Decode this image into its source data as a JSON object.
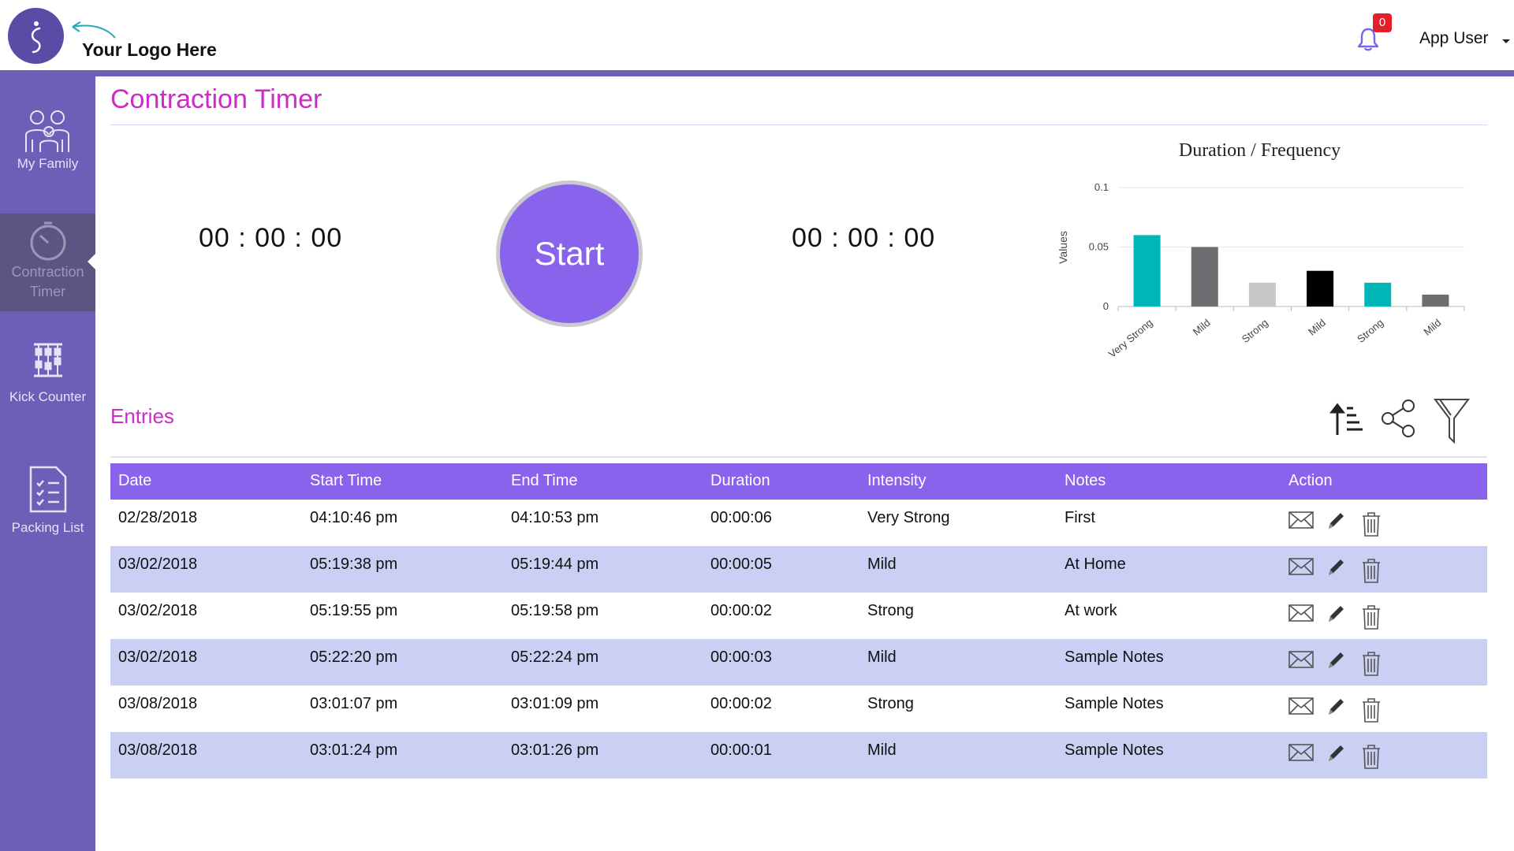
{
  "header": {
    "logo_text": "Your Logo Here",
    "notification_count": "0",
    "user_name": "App User"
  },
  "sidebar": {
    "items": [
      {
        "label": "My Family",
        "icon": "family-icon"
      },
      {
        "label": "Contraction Timer",
        "icon": "stopwatch-icon",
        "active": true
      },
      {
        "label": "Kick Counter",
        "icon": "abacus-icon"
      },
      {
        "label": "Packing List",
        "icon": "checklist-icon"
      }
    ]
  },
  "main": {
    "title": "Contraction Timer",
    "timer_left": "00 : 00 : 00",
    "timer_right": "00 : 00 : 00",
    "start_label": "Start",
    "entries_title": "Entries"
  },
  "chart_data": {
    "type": "bar",
    "title": "Duration / Frequency",
    "ylabel": "Values",
    "xlabel": "",
    "categories": [
      "Very Strong",
      "Mild",
      "Strong",
      "Mild",
      "Strong",
      "Mild"
    ],
    "values": [
      0.06,
      0.05,
      0.02,
      0.03,
      0.02,
      0.01
    ],
    "colors": [
      "#00b5b8",
      "#6e6e72",
      "#c8c8c8",
      "#000000",
      "#00b5b8",
      "#6e6e72"
    ],
    "yticks": [
      "0",
      "0.05",
      "0.1"
    ],
    "ylim": [
      0,
      0.1
    ],
    "grid": true
  },
  "table": {
    "headers": [
      "Date",
      "Start Time",
      "End Time",
      "Duration",
      "Intensity",
      "Notes",
      "Action"
    ],
    "rows": [
      [
        "02/28/2018",
        "04:10:46 pm",
        "04:10:53 pm",
        "00:00:06",
        "Very Strong",
        "First"
      ],
      [
        "03/02/2018",
        "05:19:38 pm",
        "05:19:44 pm",
        "00:00:05",
        "Mild",
        "At Home"
      ],
      [
        "03/02/2018",
        "05:19:55 pm",
        "05:19:58 pm",
        "00:00:02",
        "Strong",
        "At work"
      ],
      [
        "03/02/2018",
        "05:22:20 pm",
        "05:22:24 pm",
        "00:00:03",
        "Mild",
        "Sample Notes"
      ],
      [
        "03/08/2018",
        "03:01:07 pm",
        "03:01:09 pm",
        "00:00:02",
        "Strong",
        "Sample Notes"
      ],
      [
        "03/08/2018",
        "03:01:24 pm",
        "03:01:26 pm",
        "00:00:01",
        "Mild",
        "Sample Notes"
      ]
    ]
  }
}
